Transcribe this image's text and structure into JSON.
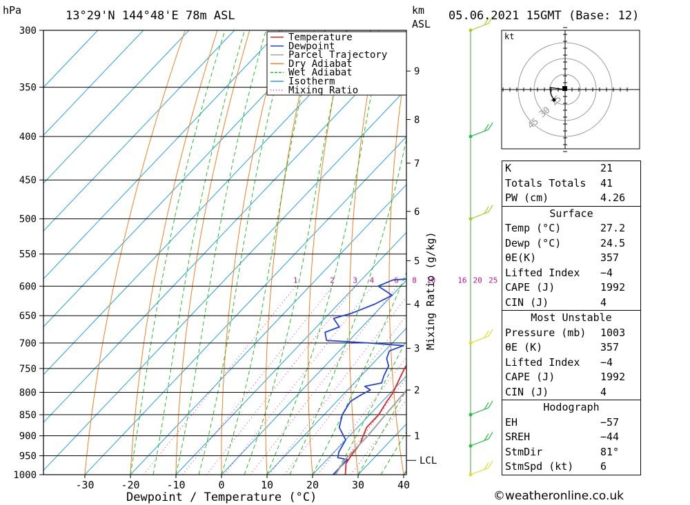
{
  "header": {
    "hpa_label": "hPa",
    "location": "13°29'N  144°48'E  78m  ASL",
    "km_label": "km",
    "asl_label": "ASL",
    "datetime": "05.06.2021  15GMT  (Base: 12)"
  },
  "chart_data": {
    "type": "line",
    "pressure_levels": [
      300,
      350,
      400,
      450,
      500,
      550,
      600,
      650,
      700,
      750,
      800,
      850,
      900,
      950,
      1000
    ],
    "x_ticks": [
      -30,
      -20,
      -10,
      0,
      10,
      20,
      30,
      40
    ],
    "xlim": [
      -40,
      40
    ],
    "ylim": [
      1000,
      300
    ],
    "xlabel": "Dewpoint / Temperature (°C)",
    "right_label": "Mixing Ratio (g/kg)",
    "km_ticks": [
      {
        "label": "1",
        "p": 900
      },
      {
        "label": "2",
        "p": 795
      },
      {
        "label": "3",
        "p": 710
      },
      {
        "label": "4",
        "p": 630
      },
      {
        "label": "5",
        "p": 560
      },
      {
        "label": "6",
        "p": 490
      },
      {
        "label": "7",
        "p": 430
      },
      {
        "label": "8",
        "p": 382
      },
      {
        "label": "9",
        "p": 335
      }
    ],
    "lcl_label": "LCL",
    "lcl_p": 962,
    "mixing_ratio_labels": [
      "1",
      "2",
      "3",
      "4",
      "6",
      "8",
      "10",
      "16",
      "20",
      "25"
    ],
    "mixing_ratio_values": [
      1,
      2,
      3,
      4,
      6,
      8,
      10,
      16,
      20,
      25
    ],
    "series": [
      {
        "name": "Temperature",
        "color": "#e02020",
        "points": [
          [
            27.2,
            1000
          ],
          [
            25,
            970
          ],
          [
            24.5,
            950
          ],
          [
            24,
            920
          ],
          [
            23,
            900
          ],
          [
            22,
            880
          ],
          [
            22,
            850
          ],
          [
            21,
            820
          ],
          [
            20.5,
            800
          ],
          [
            19,
            770
          ],
          [
            18,
            750
          ],
          [
            17,
            720
          ],
          [
            16.5,
            700
          ],
          [
            17,
            670
          ],
          [
            16,
            650
          ],
          [
            15.5,
            630
          ],
          [
            15,
            600
          ],
          [
            14.5,
            580
          ],
          [
            13,
            560
          ],
          [
            11,
            540
          ],
          [
            9.5,
            520
          ],
          [
            8,
            500
          ],
          [
            7,
            480
          ],
          [
            6.5,
            460
          ],
          [
            5,
            445
          ],
          [
            3,
            420
          ],
          [
            0.5,
            400
          ],
          [
            -2,
            380
          ],
          [
            -4.5,
            365
          ],
          [
            -7,
            340
          ],
          [
            -10,
            315
          ],
          [
            -11,
            300
          ]
        ]
      },
      {
        "name": "Dewpoint",
        "color": "#2040e0",
        "points": [
          [
            24.5,
            1000
          ],
          [
            24.5,
            960
          ],
          [
            22,
            955
          ],
          [
            21,
            940
          ],
          [
            20,
            910
          ],
          [
            16,
            880
          ],
          [
            14,
            850
          ],
          [
            13,
            820
          ],
          [
            14,
            805
          ],
          [
            15,
            795
          ],
          [
            13,
            787
          ],
          [
            16,
            780
          ],
          [
            15,
            765
          ],
          [
            14,
            745
          ],
          [
            12,
            730
          ],
          [
            11,
            715
          ],
          [
            13,
            705
          ],
          [
            5,
            700
          ],
          [
            -5,
            695
          ],
          [
            -7,
            680
          ],
          [
            -5,
            670
          ],
          [
            -8,
            655
          ],
          [
            -5,
            645
          ],
          [
            -2,
            630
          ],
          [
            0,
            615
          ],
          [
            -5,
            600
          ],
          [
            -3,
            590
          ],
          [
            7,
            585
          ],
          [
            10,
            580
          ],
          [
            10,
            560
          ],
          [
            8,
            550
          ],
          [
            0,
            545
          ],
          [
            -3,
            535
          ],
          [
            0,
            530
          ],
          [
            6,
            528
          ],
          [
            10,
            515
          ],
          [
            11,
            505
          ],
          [
            8,
            495
          ],
          [
            3,
            490
          ],
          [
            1,
            480
          ],
          [
            2,
            475
          ],
          [
            0,
            465
          ],
          [
            4,
            462
          ],
          [
            7,
            458
          ],
          [
            6,
            450
          ],
          [
            3,
            445
          ],
          [
            -5,
            440
          ],
          [
            -6,
            435
          ],
          [
            -3,
            430
          ],
          [
            -4,
            425
          ],
          [
            2,
            420
          ],
          [
            4,
            410
          ],
          [
            3,
            400
          ],
          [
            1,
            390
          ],
          [
            1,
            380
          ],
          [
            0,
            360
          ],
          [
            -14,
            352
          ],
          [
            -16,
            340
          ],
          [
            -16,
            325
          ],
          [
            -6,
            320
          ],
          [
            -12,
            310
          ],
          [
            -4,
            305
          ],
          [
            -8,
            300
          ]
        ]
      },
      {
        "name": "Parcel Trajectory",
        "color": "#a0a0a0",
        "points": [
          [
            25,
            1000
          ],
          [
            24,
            960
          ],
          [
            24,
            900
          ],
          [
            23.5,
            850
          ],
          [
            23,
            800
          ],
          [
            22.5,
            750
          ],
          [
            21.5,
            700
          ],
          [
            20.5,
            650
          ],
          [
            19.5,
            600
          ],
          [
            19,
            550
          ],
          [
            17.5,
            500
          ],
          [
            16,
            450
          ],
          [
            13.5,
            400
          ],
          [
            10.5,
            370
          ]
        ]
      },
      {
        "name": "Dry Adiabat",
        "color": "#f08020"
      },
      {
        "name": "Wet Adiabat",
        "color": "#20c020"
      },
      {
        "name": "Isotherm",
        "color": "#20a0e0"
      },
      {
        "name": "Mixing Ratio",
        "color": "#d020a0"
      }
    ],
    "wind_barbs": [
      {
        "p": 300,
        "color": "#a0d020"
      },
      {
        "p": 400,
        "color": "#20c040"
      },
      {
        "p": 500,
        "color": "#a0d020"
      },
      {
        "p": 700,
        "color": "#e0e020"
      },
      {
        "p": 850,
        "color": "#20c040"
      },
      {
        "p": 925,
        "color": "#20c040"
      },
      {
        "p": 1000,
        "color": "#e0e020"
      }
    ],
    "hodograph": {
      "unit_label": "kt",
      "ring_labels": [
        "15",
        "30",
        "45"
      ]
    }
  },
  "indices": {
    "rows": [
      {
        "label": "K",
        "value": "21"
      },
      {
        "label": "Totals Totals",
        "value": "41"
      },
      {
        "label": "PW (cm)",
        "value": "4.26"
      }
    ]
  },
  "surface": {
    "title": "Surface",
    "rows": [
      {
        "label": "Temp (°C)",
        "value": "27.2"
      },
      {
        "label": "Dewp (°C)",
        "value": "24.5"
      },
      {
        "label": "θE(K)",
        "value": "357"
      },
      {
        "label": "Lifted Index",
        "value": "−4"
      },
      {
        "label": "CAPE (J)",
        "value": "1992"
      },
      {
        "label": "CIN (J)",
        "value": "4"
      }
    ]
  },
  "most_unstable": {
    "title": "Most Unstable",
    "rows": [
      {
        "label": "Pressure (mb)",
        "value": "1003"
      },
      {
        "label": "θE (K)",
        "value": "357"
      },
      {
        "label": "Lifted Index",
        "value": "−4"
      },
      {
        "label": "CAPE (J)",
        "value": "1992"
      },
      {
        "label": "CIN (J)",
        "value": "4"
      }
    ]
  },
  "hodograph_table": {
    "title": "Hodograph",
    "rows": [
      {
        "label": "EH",
        "value": "−57"
      },
      {
        "label": "SREH",
        "value": "−44"
      },
      {
        "label": "StmDir",
        "value": "81°"
      },
      {
        "label": "StmSpd (kt)",
        "value": "6"
      }
    ]
  },
  "footer": "©weatheronline.co.uk"
}
